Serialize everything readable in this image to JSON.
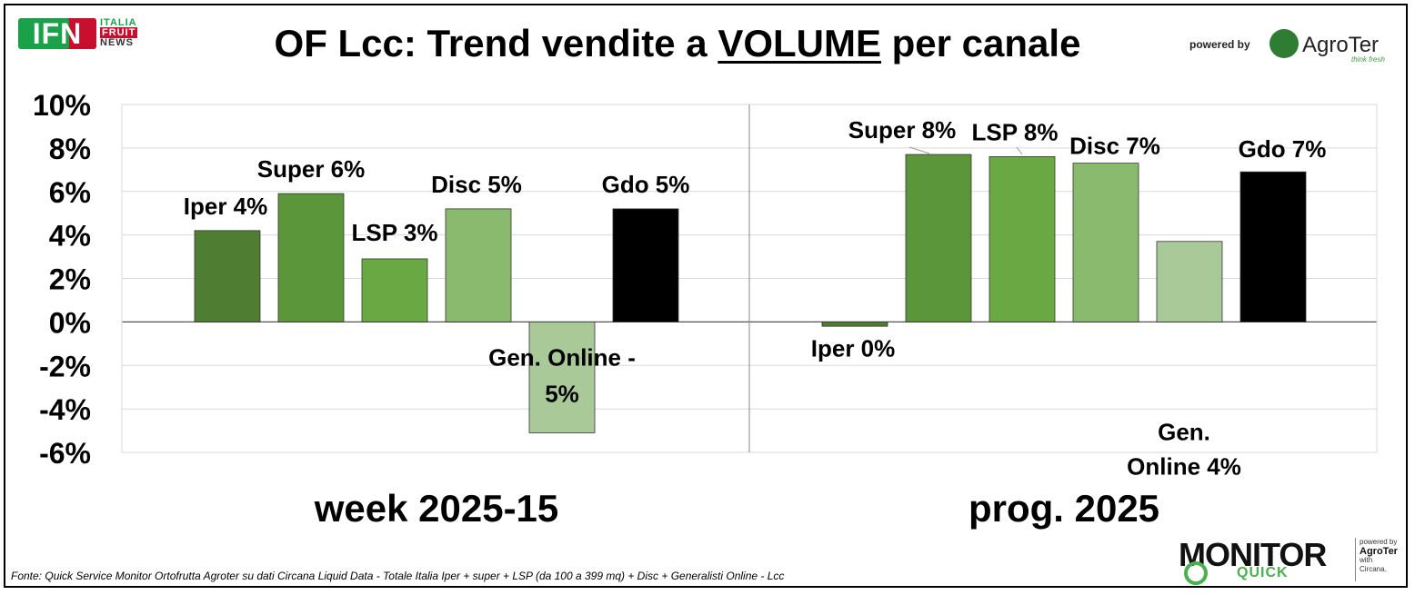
{
  "header": {
    "title_prefix": "OF Lcc: Trend vendite a ",
    "title_underlined": "VOLUME",
    "title_suffix": " per canale",
    "powered_by": "powered by",
    "agroter_name": "AgroTer",
    "agroter_tagline": "think fresh",
    "ifn_mark": "IFN",
    "ifn_line1": "ITALIA",
    "ifn_line2": "FRUIT",
    "ifn_line3": "NEWS"
  },
  "footer": {
    "source": "Fonte: Quick Service Monitor Ortofrutta Agroter su dati Circana Liquid Data - Totale Italia Iper + super + LSP (da 100 a 399 mq) + Disc + Generalisti Online - Lcc",
    "monitor_word": "MONITOR",
    "monitor_quick": "QUICK",
    "side_powered": "powered by",
    "side_agroter": "AgroTer",
    "side_with": "with",
    "side_circana": "Circana."
  },
  "chart_data": {
    "type": "bar",
    "yticks": [
      "10%",
      "8%",
      "6%",
      "4%",
      "2%",
      "0%",
      "-2%",
      "-4%",
      "-6%"
    ],
    "ylim": [
      -6,
      10
    ],
    "series_colors": [
      "#4f7d32",
      "#5b963b",
      "#6aa843",
      "#8aba6e",
      "#a9ca98",
      "#000000"
    ],
    "groups": [
      {
        "category": "week 2025-15",
        "bars": [
          {
            "name": "Iper",
            "value": 4.2,
            "label": [
              "Iper 4%"
            ]
          },
          {
            "name": "Super",
            "value": 5.9,
            "label": [
              "Super 6%"
            ]
          },
          {
            "name": "LSP",
            "value": 2.9,
            "label": [
              "LSP 3%"
            ]
          },
          {
            "name": "Disc",
            "value": 5.2,
            "label": [
              "Disc 5%"
            ]
          },
          {
            "name": "Gen. Online",
            "value": -5.1,
            "label": [
              "Gen. Online -",
              "5%"
            ]
          },
          {
            "name": "Gdo",
            "value": 5.2,
            "label": [
              "Gdo 5%"
            ]
          }
        ]
      },
      {
        "category": "prog. 2025",
        "bars": [
          {
            "name": "Iper",
            "value": -0.2,
            "label": [
              "Iper 0%"
            ]
          },
          {
            "name": "Super",
            "value": 7.7,
            "label": [
              "Super 8%"
            ]
          },
          {
            "name": "LSP",
            "value": 7.6,
            "label": [
              "LSP 8%"
            ]
          },
          {
            "name": "Disc",
            "value": 7.3,
            "label": [
              "Disc 7%"
            ]
          },
          {
            "name": "Gen. Online",
            "value": 3.7,
            "label": [
              "Gen.",
              "Online 4%"
            ]
          },
          {
            "name": "Gdo",
            "value": 6.9,
            "label": [
              "Gdo 7%"
            ]
          }
        ]
      }
    ]
  }
}
